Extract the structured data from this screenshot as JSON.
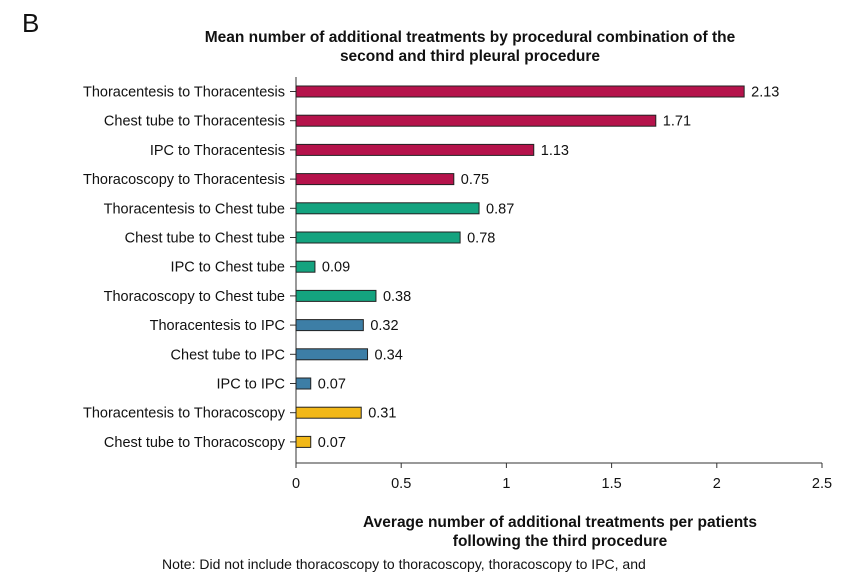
{
  "panel_letter": "B",
  "chart_data": {
    "type": "bar",
    "orientation": "horizontal",
    "title_line1": "Mean number of additional treatments by procedural combination of the",
    "title_line2": "second and third pleural procedure",
    "xlabel_line1": "Average number of additional treatments per patients",
    "xlabel_line2": "following the third procedure",
    "xlim": [
      0,
      2.5
    ],
    "xticks": [
      0,
      0.5,
      1,
      1.5,
      2,
      2.5
    ],
    "xtick_labels": [
      "0",
      "0.5",
      "1",
      "1.5",
      "2",
      "2.5"
    ],
    "grid": false,
    "categories": [
      "Thoracentesis to Thoracentesis",
      "Chest tube to Thoracentesis",
      "IPC to Thoracentesis",
      "Thoracoscopy to Thoracentesis",
      "Thoracentesis to Chest tube",
      "Chest tube to Chest tube",
      "IPC to Chest tube",
      "Thoracoscopy to Chest tube",
      "Thoracentesis to IPC",
      "Chest tube to IPC",
      "IPC to IPC",
      "Thoracentesis to Thoracoscopy",
      "Chest tube to Thoracoscopy"
    ],
    "values": [
      2.13,
      1.71,
      1.13,
      0.75,
      0.87,
      0.78,
      0.09,
      0.38,
      0.32,
      0.34,
      0.07,
      0.31,
      0.07
    ],
    "value_labels": [
      "2.13",
      "1.71",
      "1.13",
      "0.75",
      "0.87",
      "0.78",
      "0.09",
      "0.38",
      "0.32",
      "0.34",
      "0.07",
      "0.31",
      "0.07"
    ],
    "bar_colors": [
      "#b5134b",
      "#b5134b",
      "#b5134b",
      "#b5134b",
      "#14a37f",
      "#14a37f",
      "#14a37f",
      "#14a37f",
      "#3d7ea6",
      "#3d7ea6",
      "#3d7ea6",
      "#f2b818",
      "#f2b818"
    ],
    "bar_edge_color": "#222222"
  },
  "note": "Note: Did not include thoracoscopy to thoracoscopy, thoracoscopy to IPC, and"
}
